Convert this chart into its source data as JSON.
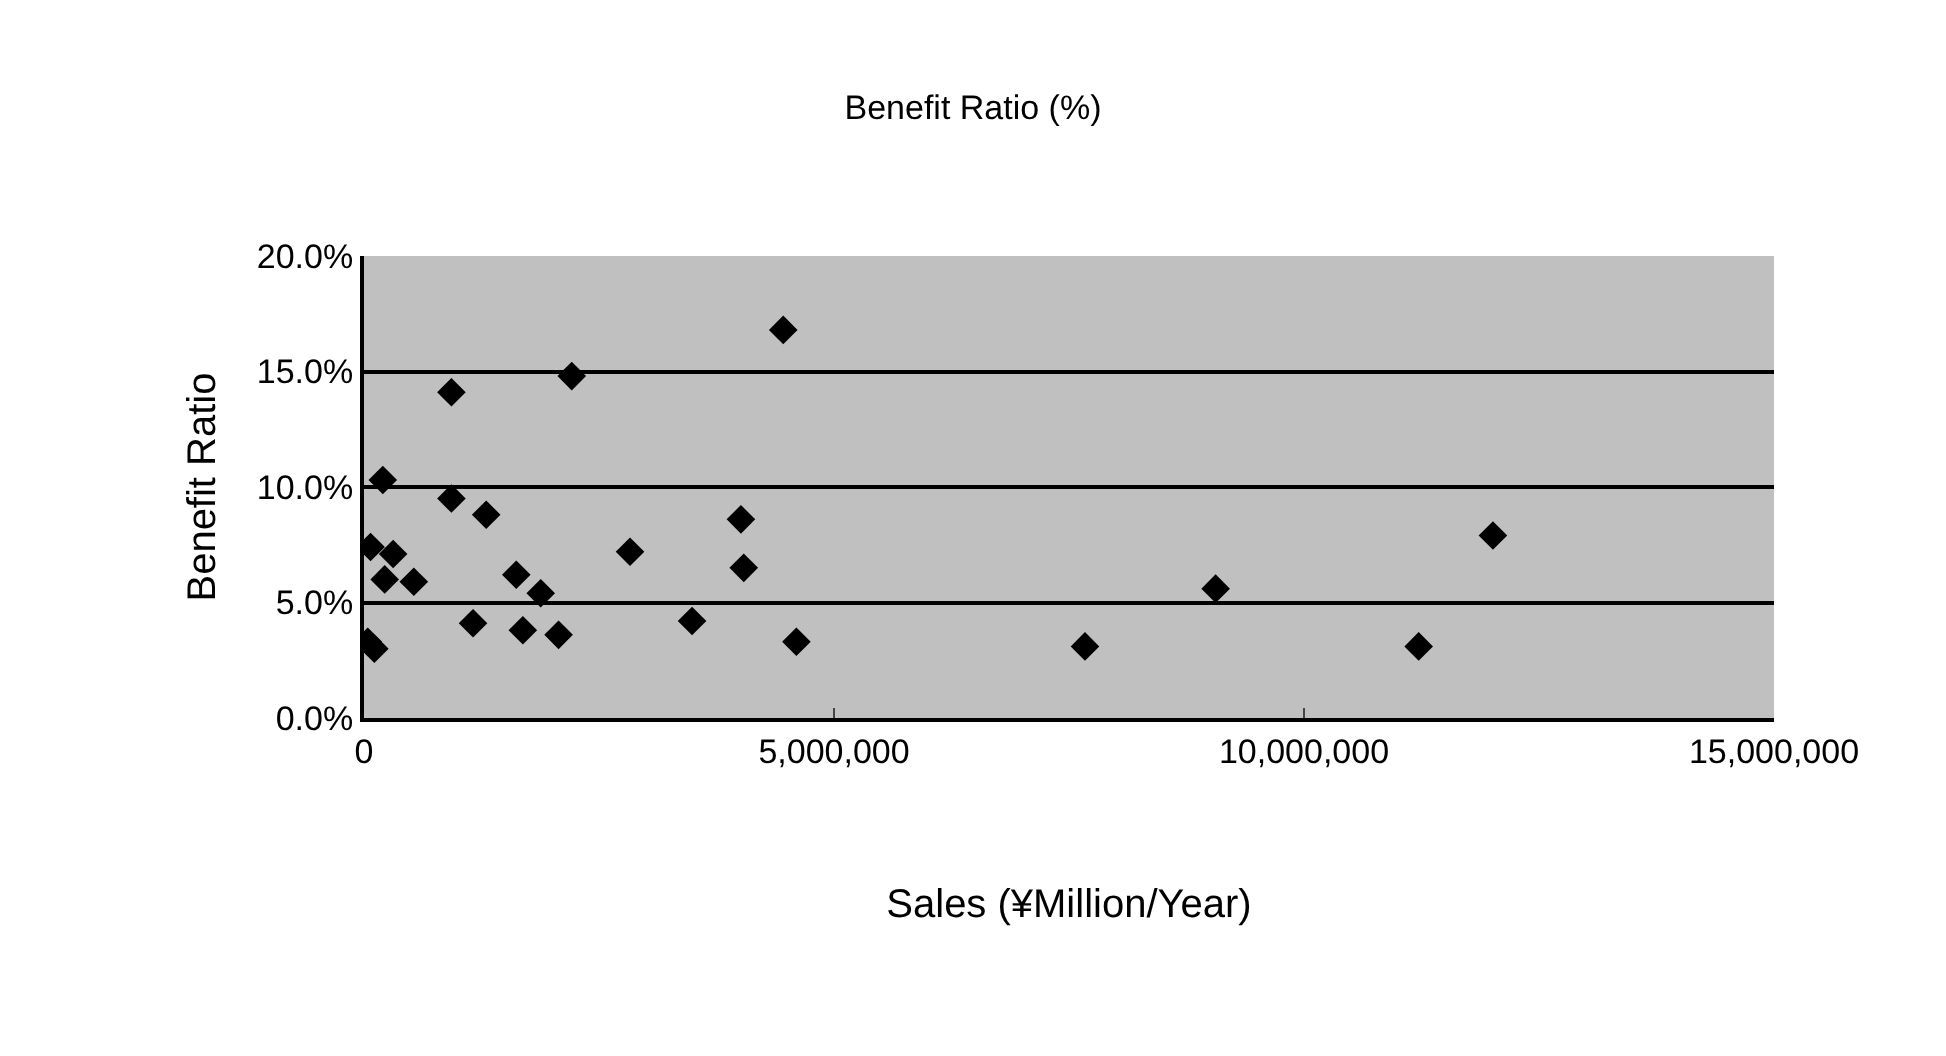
{
  "chart_data": {
    "type": "scatter",
    "title": "Benefit Ratio (%)",
    "xlabel": "Sales (¥Million/Year)",
    "ylabel": "Benefit Ratio",
    "x": [
      4460000,
      2210000,
      930000,
      200000,
      930000,
      1300000,
      70000,
      310000,
      220000,
      530000,
      1620000,
      1880000,
      2830000,
      4010000,
      4040000,
      40000,
      110000,
      1160000,
      1690000,
      2070000,
      3490000,
      4600000,
      7670000,
      9060000,
      11220000,
      12010000
    ],
    "values": [
      16.8,
      14.8,
      14.1,
      10.3,
      9.5,
      8.8,
      7.4,
      7.1,
      6.0,
      5.9,
      6.2,
      5.4,
      7.2,
      8.6,
      6.5,
      3.3,
      3.0,
      4.1,
      3.8,
      3.6,
      4.2,
      3.3,
      3.1,
      5.6,
      3.1,
      7.9
    ],
    "color": "#000000",
    "marker": "diamond",
    "xlim": [
      0,
      15000000
    ],
    "xticks": [
      0,
      {
        "value": 5000000,
        "label": "5,000,000"
      },
      {
        "value": 10000000,
        "label": "10,000,000"
      },
      {
        "value": 15000000,
        "label": "15,000,000"
      }
    ],
    "ylim": [
      0,
      20
    ],
    "yticks": [
      {
        "value": 0,
        "label": "0.0%"
      },
      {
        "value": 5,
        "label": "5.0%"
      },
      {
        "value": 10,
        "label": "10.0%"
      },
      {
        "value": 15,
        "label": "15.0%"
      },
      {
        "value": 20,
        "label": "20.0%"
      }
    ],
    "grid": "y",
    "legend": false
  }
}
